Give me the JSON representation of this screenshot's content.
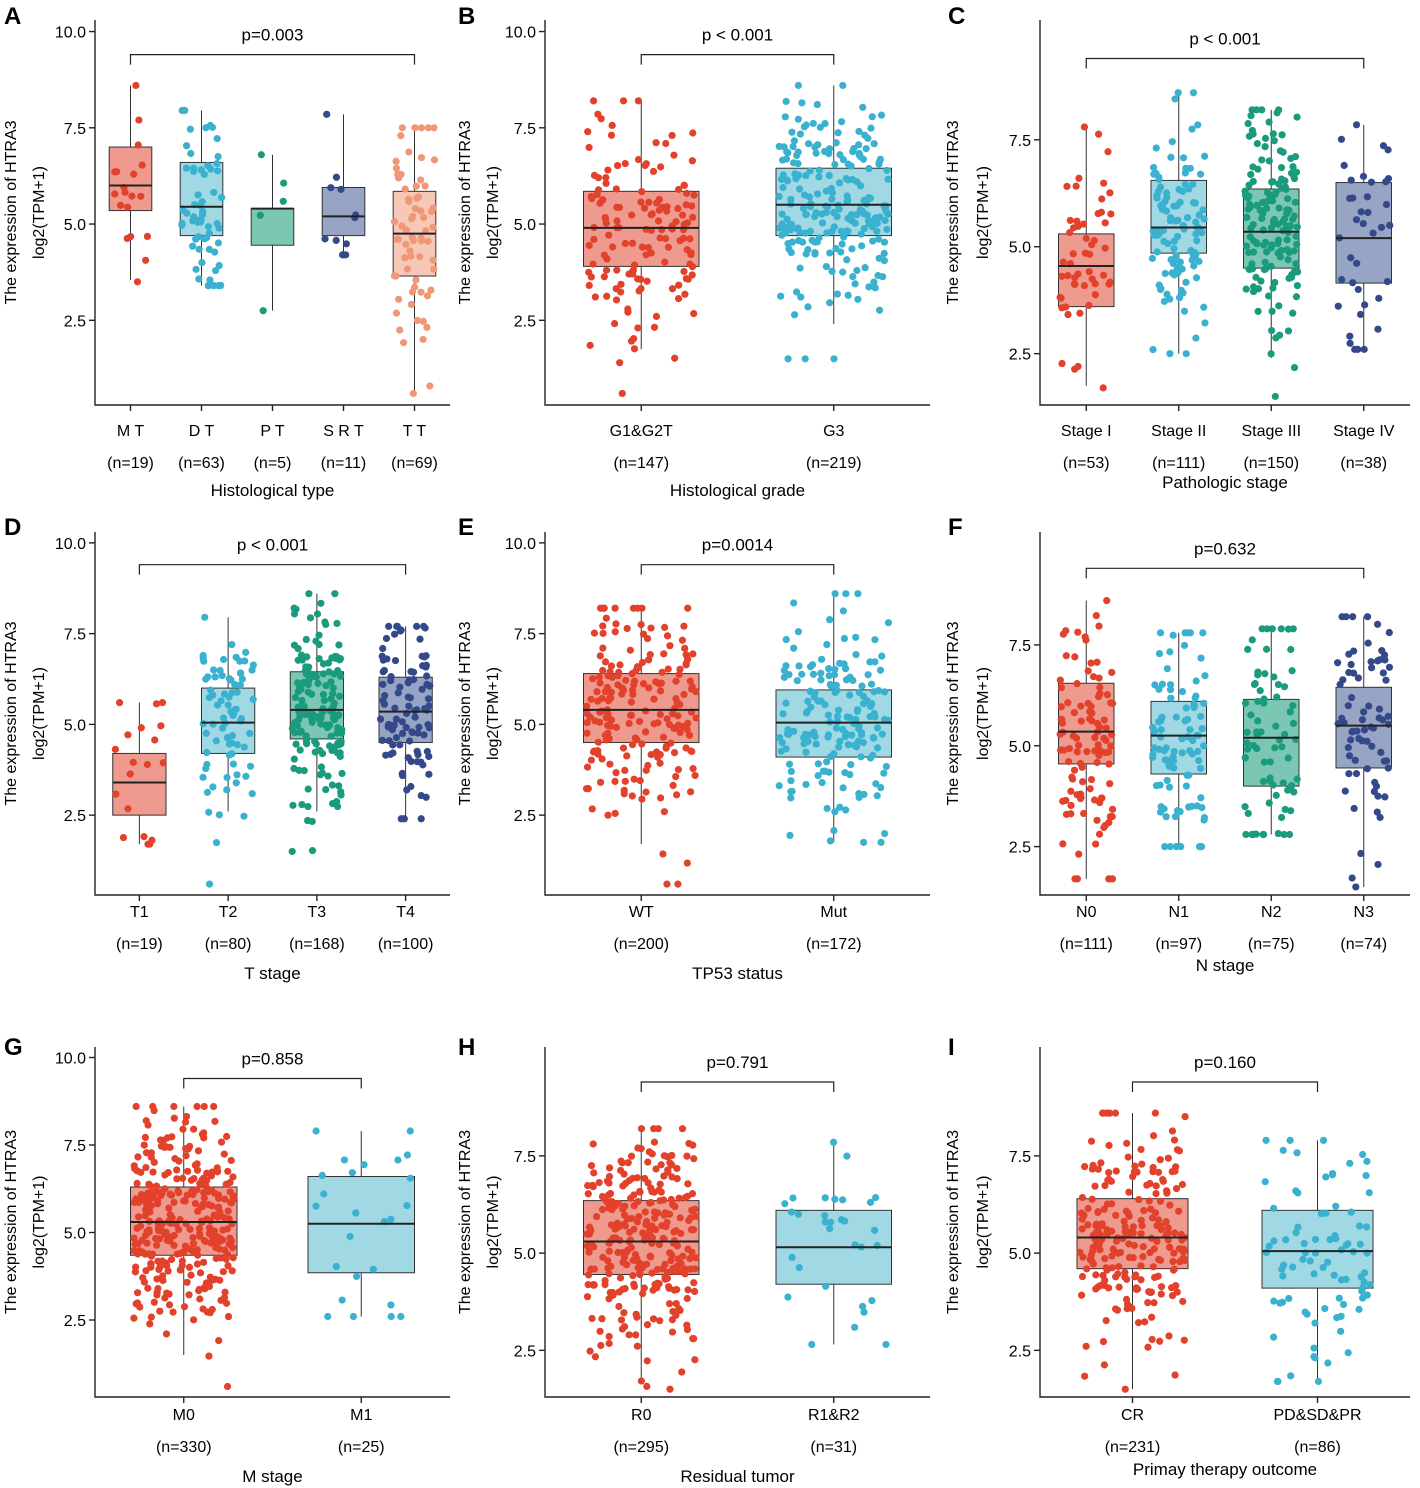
{
  "colors": {
    "red_pt": "#e2412b",
    "red_box": "#ee9a8f",
    "blue_pt": "#3ab1cf",
    "blue_box": "#a0d8e4",
    "green_pt": "#1b9b7e",
    "green_box": "#7cc7b3",
    "navy_pt": "#34498a",
    "navy_box": "#97a4c3",
    "salmon_pt": "#ef9777",
    "salmon_box": "#f7c8b7"
  },
  "chart_data": [
    {
      "type": "box",
      "letter": "A",
      "pvalue": "p=0.003",
      "xlabel": "Histological type",
      "ylabel_top": "The expression of HTRA3",
      "ylabel_bottom": "log2(TPM+1)",
      "ylim": [
        0.3,
        10.3
      ],
      "yticks": [
        "10.0",
        "7.5",
        "5.0",
        "2.5"
      ],
      "yticks_values": [
        10,
        7.5,
        5,
        2.5
      ],
      "bracket": [
        0,
        4
      ],
      "bracket_y": 9.4,
      "groups": [
        {
          "name": "M T",
          "n": "(n=19)",
          "q1": 5.35,
          "median": 6.0,
          "q3": 7.0,
          "low": 3.55,
          "high": 8.6,
          "pt": "red_pt",
          "box": "red_box",
          "min": 3.5,
          "max": 8.6
        },
        {
          "name": "D T",
          "n": "(n=63)",
          "q1": 4.7,
          "median": 5.45,
          "q3": 6.6,
          "low": 3.4,
          "high": 7.95,
          "pt": "blue_pt",
          "box": "blue_box",
          "min": 3.4,
          "max": 7.95
        },
        {
          "name": "P T",
          "n": "(n=5)",
          "q1": 4.45,
          "median": 5.4,
          "q3": 5.4,
          "low": 2.75,
          "high": 6.8,
          "pt": "green_pt",
          "box": "green_box",
          "min": 2.75,
          "max": 6.8
        },
        {
          "name": "S R T",
          "n": "(n=11)",
          "q1": 4.7,
          "median": 5.2,
          "q3": 5.95,
          "low": 4.2,
          "high": 7.85,
          "pt": "navy_pt",
          "box": "navy_box",
          "min": 4.2,
          "max": 7.85
        },
        {
          "name": "T T",
          "n": "(n=69)",
          "q1": 3.65,
          "median": 4.75,
          "q3": 5.85,
          "low": 0.6,
          "high": 7.5,
          "pt": "salmon_pt",
          "box": "salmon_box",
          "min": 0.6,
          "max": 7.5
        }
      ]
    },
    {
      "type": "box",
      "letter": "B",
      "pvalue": "p < 0.001",
      "xlabel": "Histological grade",
      "ylabel_top": "The expression of HTRA3",
      "ylabel_bottom": "log2(TPM+1)",
      "ylim": [
        0.3,
        10.3
      ],
      "yticks": [
        "10.0",
        "7.5",
        "5.0",
        "2.5"
      ],
      "yticks_values": [
        10,
        7.5,
        5,
        2.5
      ],
      "bracket": [
        0,
        1
      ],
      "bracket_y": 9.4,
      "groups": [
        {
          "name": "G1&G2T",
          "n": "(n=147)",
          "q1": 3.9,
          "median": 4.9,
          "q3": 5.85,
          "low": 1.75,
          "high": 8.2,
          "pt": "red_pt",
          "box": "red_box",
          "min": 0.6,
          "max": 8.2
        },
        {
          "name": "G3",
          "n": "(n=219)",
          "q1": 4.7,
          "median": 5.5,
          "q3": 6.45,
          "low": 2.4,
          "high": 8.6,
          "pt": "blue_pt",
          "box": "blue_box",
          "min": 1.5,
          "max": 8.6
        }
      ]
    },
    {
      "type": "box",
      "letter": "C",
      "pvalue": "p < 0.001",
      "xlabel": "Pathologic stage",
      "ylabel_top": "The expression of HTRA3",
      "ylabel_bottom": "log2(TPM+1)",
      "ylim": [
        1.3,
        10.3
      ],
      "yticks": [
        "7.5",
        "5.0",
        "2.5"
      ],
      "yticks_values": [
        7.5,
        5,
        2.5
      ],
      "bracket": [
        0,
        3
      ],
      "bracket_y": 9.4,
      "groups": [
        {
          "name": "Stage I",
          "n": "(n=53)",
          "q1": 3.6,
          "median": 4.55,
          "q3": 5.3,
          "low": 1.75,
          "high": 7.8,
          "pt": "red_pt",
          "box": "red_box",
          "min": 1.7,
          "max": 7.8
        },
        {
          "name": "Stage II",
          "n": "(n=111)",
          "q1": 4.85,
          "median": 5.45,
          "q3": 6.55,
          "low": 2.5,
          "high": 8.6,
          "pt": "blue_pt",
          "box": "blue_box",
          "min": 2.5,
          "max": 8.6
        },
        {
          "name": "Stage III",
          "n": "(n=150)",
          "q1": 4.5,
          "median": 5.35,
          "q3": 6.35,
          "low": 2.4,
          "high": 8.2,
          "pt": "green_pt",
          "box": "green_box",
          "min": 1.5,
          "max": 8.2
        },
        {
          "name": "Stage IV",
          "n": "(n=38)",
          "q1": 4.15,
          "median": 5.2,
          "q3": 6.5,
          "low": 2.6,
          "high": 7.85,
          "pt": "navy_pt",
          "box": "navy_box",
          "min": 2.6,
          "max": 7.85
        }
      ]
    },
    {
      "type": "box",
      "letter": "D",
      "pvalue": "p < 0.001",
      "xlabel": "T stage",
      "ylabel_top": "The expression of HTRA3",
      "ylabel_bottom": "log2(TPM+1)",
      "ylim": [
        0.3,
        10.3
      ],
      "yticks": [
        "10.0",
        "7.5",
        "5.0",
        "2.5"
      ],
      "yticks_values": [
        10,
        7.5,
        5,
        2.5
      ],
      "bracket": [
        0,
        3
      ],
      "bracket_y": 9.4,
      "groups": [
        {
          "name": "T1",
          "n": "(n=19)",
          "q1": 2.5,
          "median": 3.4,
          "q3": 4.2,
          "low": 1.7,
          "high": 5.6,
          "pt": "red_pt",
          "box": "red_box",
          "min": 1.7,
          "max": 5.6
        },
        {
          "name": "T2",
          "n": "(n=80)",
          "q1": 4.2,
          "median": 5.05,
          "q3": 6.0,
          "low": 2.6,
          "high": 7.95,
          "pt": "blue_pt",
          "box": "blue_box",
          "min": 0.6,
          "max": 7.95
        },
        {
          "name": "T3",
          "n": "(n=168)",
          "q1": 4.6,
          "median": 5.4,
          "q3": 6.45,
          "low": 2.6,
          "high": 8.6,
          "pt": "green_pt",
          "box": "green_box",
          "min": 1.5,
          "max": 8.6
        },
        {
          "name": "T4",
          "n": "(n=100)",
          "q1": 4.5,
          "median": 5.35,
          "q3": 6.3,
          "low": 2.4,
          "high": 7.7,
          "pt": "navy_pt",
          "box": "navy_box",
          "min": 2.4,
          "max": 7.7
        }
      ]
    },
    {
      "type": "box",
      "letter": "E",
      "pvalue": "p=0.0014",
      "xlabel": "TP53 status",
      "ylabel_top": "The expression of HTRA3",
      "ylabel_bottom": "log2(TPM+1)",
      "ylim": [
        0.3,
        10.3
      ],
      "yticks": [
        "10.0",
        "7.5",
        "5.0",
        "2.5"
      ],
      "yticks_values": [
        10,
        7.5,
        5,
        2.5
      ],
      "bracket": [
        0,
        1
      ],
      "bracket_y": 9.4,
      "groups": [
        {
          "name": "WT",
          "n": "(n=200)",
          "q1": 4.5,
          "median": 5.4,
          "q3": 6.4,
          "low": 1.7,
          "high": 8.2,
          "pt": "red_pt",
          "box": "red_box",
          "min": 0.6,
          "max": 8.2
        },
        {
          "name": "Mut",
          "n": "(n=172)",
          "q1": 4.1,
          "median": 5.05,
          "q3": 5.95,
          "low": 1.75,
          "high": 8.6,
          "pt": "blue_pt",
          "box": "blue_box",
          "min": 1.75,
          "max": 8.6
        }
      ]
    },
    {
      "type": "box",
      "letter": "F",
      "pvalue": "p=0.632",
      "xlabel": "N stage",
      "ylabel_top": "The expression of HTRA3",
      "ylabel_bottom": "log2(TPM+1)",
      "ylim": [
        1.3,
        10.3
      ],
      "yticks": [
        "7.5",
        "5.0",
        "2.5"
      ],
      "yticks_values": [
        7.5,
        5,
        2.5
      ],
      "bracket": [
        0,
        3
      ],
      "bracket_y": 9.4,
      "groups": [
        {
          "name": "N0",
          "n": "(n=111)",
          "q1": 4.55,
          "median": 5.35,
          "q3": 6.55,
          "low": 1.7,
          "high": 8.6,
          "pt": "red_pt",
          "box": "red_box",
          "min": 1.7,
          "max": 8.6
        },
        {
          "name": "N1",
          "n": "(n=97)",
          "q1": 4.3,
          "median": 5.25,
          "q3": 6.1,
          "low": 2.5,
          "high": 7.8,
          "pt": "blue_pt",
          "box": "blue_box",
          "min": 2.5,
          "max": 7.8
        },
        {
          "name": "N2",
          "n": "(n=75)",
          "q1": 4.0,
          "median": 5.2,
          "q3": 6.15,
          "low": 2.8,
          "high": 7.9,
          "pt": "green_pt",
          "box": "green_box",
          "min": 2.8,
          "max": 7.9
        },
        {
          "name": "N3",
          "n": "(n=74)",
          "q1": 4.45,
          "median": 5.5,
          "q3": 6.45,
          "low": 1.5,
          "high": 8.2,
          "pt": "navy_pt",
          "box": "navy_box",
          "min": 1.5,
          "max": 8.2
        }
      ]
    },
    {
      "type": "box",
      "letter": "G",
      "pvalue": "p=0.858",
      "xlabel": "M stage",
      "ylabel_top": "The expression of HTRA3",
      "ylabel_bottom": "log2(TPM+1)",
      "ylim": [
        0.3,
        10.3
      ],
      "yticks": [
        "10.0",
        "7.5",
        "5.0",
        "2.5"
      ],
      "yticks_values": [
        10,
        7.5,
        5,
        2.5
      ],
      "bracket": [
        0,
        1
      ],
      "bracket_y": 9.4,
      "groups": [
        {
          "name": "M0",
          "n": "(n=330)",
          "q1": 4.35,
          "median": 5.3,
          "q3": 6.3,
          "low": 1.5,
          "high": 8.6,
          "pt": "red_pt",
          "box": "red_box",
          "min": 0.6,
          "max": 8.6
        },
        {
          "name": "M1",
          "n": "(n=25)",
          "q1": 3.85,
          "median": 5.25,
          "q3": 6.6,
          "low": 2.6,
          "high": 7.9,
          "pt": "blue_pt",
          "box": "blue_box",
          "min": 2.6,
          "max": 7.9
        }
      ]
    },
    {
      "type": "box",
      "letter": "H",
      "pvalue": "p=0.791",
      "xlabel": "Residual tumor",
      "ylabel_top": "The expression of HTRA3",
      "ylabel_bottom": "log2(TPM+1)",
      "ylim": [
        1.3,
        10.3
      ],
      "yticks": [
        "7.5",
        "5.0",
        "2.5"
      ],
      "yticks_values": [
        7.5,
        5,
        2.5
      ],
      "bracket": [
        0,
        1
      ],
      "bracket_y": 9.4,
      "groups": [
        {
          "name": "R0",
          "n": "(n=295)",
          "q1": 4.45,
          "median": 5.3,
          "q3": 6.35,
          "low": 1.7,
          "high": 8.2,
          "pt": "red_pt",
          "box": "red_box",
          "min": 1.5,
          "max": 8.2
        },
        {
          "name": "R1&R2",
          "n": "(n=31)",
          "q1": 4.2,
          "median": 5.15,
          "q3": 6.1,
          "low": 2.65,
          "high": 7.85,
          "pt": "blue_pt",
          "box": "blue_box",
          "min": 2.65,
          "max": 7.85
        }
      ]
    },
    {
      "type": "box",
      "letter": "I",
      "pvalue": "p=0.160",
      "xlabel": "Primay therapy outcome",
      "ylabel_top": "The expression of HTRA3",
      "ylabel_bottom": "log2(TPM+1)",
      "ylim": [
        1.3,
        10.3
      ],
      "yticks": [
        "7.5",
        "5.0",
        "2.5"
      ],
      "yticks_values": [
        7.5,
        5,
        2.5
      ],
      "bracket": [
        0,
        1
      ],
      "bracket_y": 9.4,
      "groups": [
        {
          "name": "CR",
          "n": "(n=231)",
          "q1": 4.6,
          "median": 5.4,
          "q3": 6.4,
          "low": 1.5,
          "high": 8.6,
          "pt": "red_pt",
          "box": "red_box",
          "min": 1.5,
          "max": 8.6
        },
        {
          "name": "PD&SD&PR",
          "n": "(n=86)",
          "q1": 4.1,
          "median": 5.05,
          "q3": 6.1,
          "low": 1.7,
          "high": 7.9,
          "pt": "blue_pt",
          "box": "blue_box",
          "min": 1.7,
          "max": 7.9
        }
      ]
    }
  ]
}
